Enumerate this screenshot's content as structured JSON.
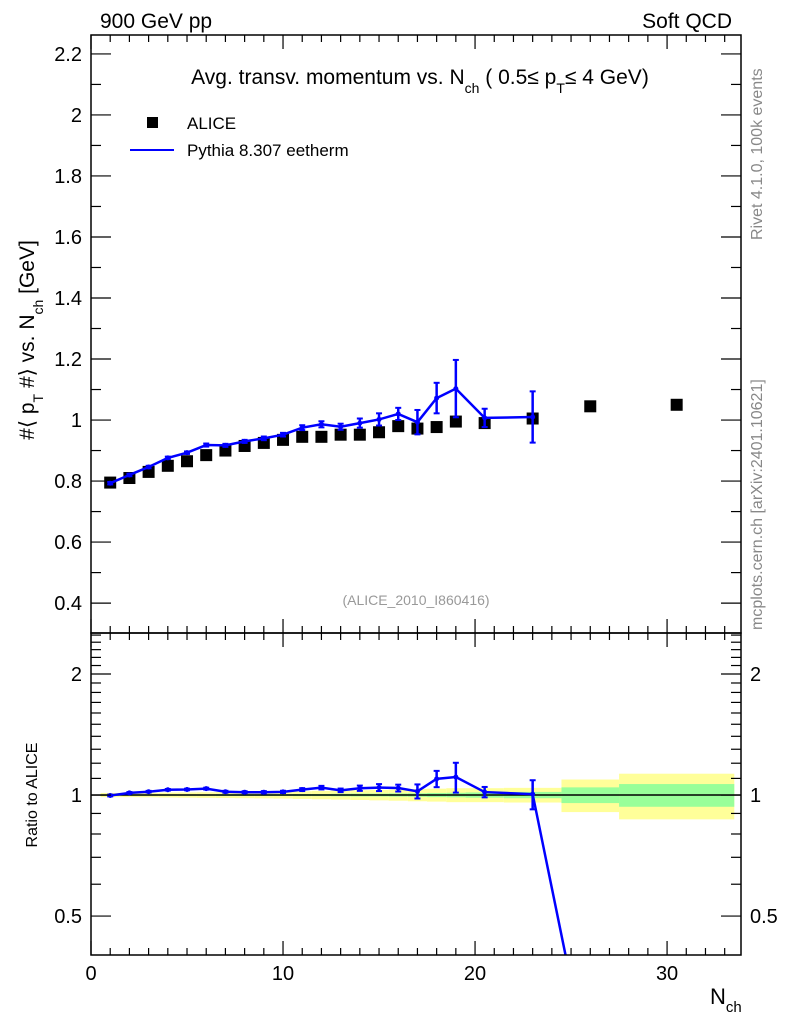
{
  "header": {
    "left": "900 GeV pp",
    "right": "Soft QCD"
  },
  "side_text": {
    "top": "Rivet 4.1.0,  100k events",
    "bottom": "mcplots.cern.ch [arXiv:2401.10621]"
  },
  "watermark": "(ALICE_2010_I860416)",
  "chart_data": [
    {
      "type": "scatter+line",
      "title_parts": {
        "a": "Avg. transv. momentum vs. N",
        "a_sub": "ch",
        "b": " ( 0.5≤ p",
        "b_sub": "T",
        "c": "≤ 4 GeV)"
      },
      "ylabel_parts": {
        "a": "#⟨ p",
        "a_sub": "T",
        "b": " #⟩ vs. N",
        "b_sub": "ch",
        "c": " [GeV]"
      },
      "xlim": [
        0,
        33.85
      ],
      "ylim": [
        0.302,
        2.262
      ],
      "yticks": [
        0.4,
        0.6,
        0.8,
        1,
        1.2,
        1.4,
        1.6,
        1.8,
        2,
        2.2
      ],
      "ytick_labels": [
        "0.4",
        "0.6",
        "0.8",
        "1",
        "1.2",
        "1.4",
        "1.6",
        "1.8",
        "2",
        "2.2"
      ],
      "legend": {
        "placement": "top-left",
        "entries": [
          "ALICE",
          "Pythia 8.307 eetherm"
        ]
      },
      "series": [
        {
          "name": "ALICE",
          "style": "markers",
          "color": "#000000",
          "x": [
            1,
            2,
            3,
            4,
            5,
            6,
            7,
            8,
            9,
            10,
            11,
            12,
            13,
            14,
            15,
            16,
            17,
            18,
            19,
            20.5,
            23,
            26,
            30.5
          ],
          "y": [
            0.795,
            0.81,
            0.83,
            0.85,
            0.865,
            0.885,
            0.9,
            0.915,
            0.925,
            0.935,
            0.945,
            0.945,
            0.952,
            0.952,
            0.96,
            0.98,
            0.972,
            0.977,
            0.995,
            0.99,
            1.005,
            1.045,
            1.05
          ],
          "stat_rel": [
            0.004,
            0.004,
            0.004,
            0.004,
            0.004,
            0.004,
            0.005,
            0.005,
            0.005,
            0.005,
            0.006,
            0.006,
            0.007,
            0.008,
            0.008,
            0.009,
            0.01,
            0.012,
            0.013,
            0.015,
            0.018,
            0.045,
            0.065
          ],
          "tot_rel": [
            0.012,
            0.012,
            0.013,
            0.014,
            0.015,
            0.016,
            0.017,
            0.018,
            0.019,
            0.02,
            0.022,
            0.024,
            0.026,
            0.028,
            0.03,
            0.032,
            0.035,
            0.037,
            0.04,
            0.04,
            0.042,
            0.093,
            0.13
          ],
          "bin_edges": [
            [
              0.5,
              1.5
            ],
            [
              1.5,
              2.5
            ],
            [
              2.5,
              3.5
            ],
            [
              3.5,
              4.5
            ],
            [
              4.5,
              5.5
            ],
            [
              5.5,
              6.5
            ],
            [
              6.5,
              7.5
            ],
            [
              7.5,
              8.5
            ],
            [
              8.5,
              9.5
            ],
            [
              9.5,
              10.5
            ],
            [
              10.5,
              11.5
            ],
            [
              11.5,
              12.5
            ],
            [
              12.5,
              13.5
            ],
            [
              13.5,
              14.5
            ],
            [
              14.5,
              15.5
            ],
            [
              15.5,
              16.5
            ],
            [
              16.5,
              17.5
            ],
            [
              17.5,
              18.5
            ],
            [
              18.5,
              19.5
            ],
            [
              19.5,
              21.5
            ],
            [
              21.5,
              24.5
            ],
            [
              24.5,
              27.5
            ],
            [
              27.5,
              33.5
            ]
          ]
        },
        {
          "name": "Pythia 8.307 eetherm",
          "style": "line",
          "color": "#0000ff",
          "x": [
            1,
            2,
            3,
            4,
            5,
            6,
            7,
            8,
            9,
            10,
            11,
            12,
            13,
            14,
            15,
            16,
            17,
            18,
            19,
            20.5,
            23
          ],
          "y": [
            0.793,
            0.82,
            0.846,
            0.876,
            0.893,
            0.918,
            0.917,
            0.93,
            0.94,
            0.952,
            0.975,
            0.986,
            0.978,
            0.99,
            1.002,
            1.02,
            0.993,
            1.072,
            1.103,
            1.007,
            1.01
          ],
          "err": [
            0.004,
            0.004,
            0.004,
            0.004,
            0.004,
            0.005,
            0.005,
            0.005,
            0.006,
            0.006,
            0.008,
            0.01,
            0.01,
            0.015,
            0.02,
            0.02,
            0.04,
            0.05,
            0.094,
            0.03,
            0.084
          ]
        }
      ]
    },
    {
      "type": "line",
      "ylabel": "Ratio to ALICE",
      "xlabel": "N",
      "xlabel_sub": "ch",
      "yscale": "log",
      "ylim": [
        0.4,
        2.53
      ],
      "yticks": [
        0.5,
        1,
        2
      ],
      "ytick_labels": [
        "0.5",
        "1",
        "2"
      ],
      "xticks": [
        0,
        10,
        20,
        30
      ],
      "xtick_labels": [
        "0",
        "10",
        "20",
        "30"
      ],
      "band_colors": {
        "stat": "#99ff99",
        "total": "#ffff99"
      },
      "pythia_beyond_data": {
        "x": 26,
        "ratio": 0
      }
    }
  ]
}
